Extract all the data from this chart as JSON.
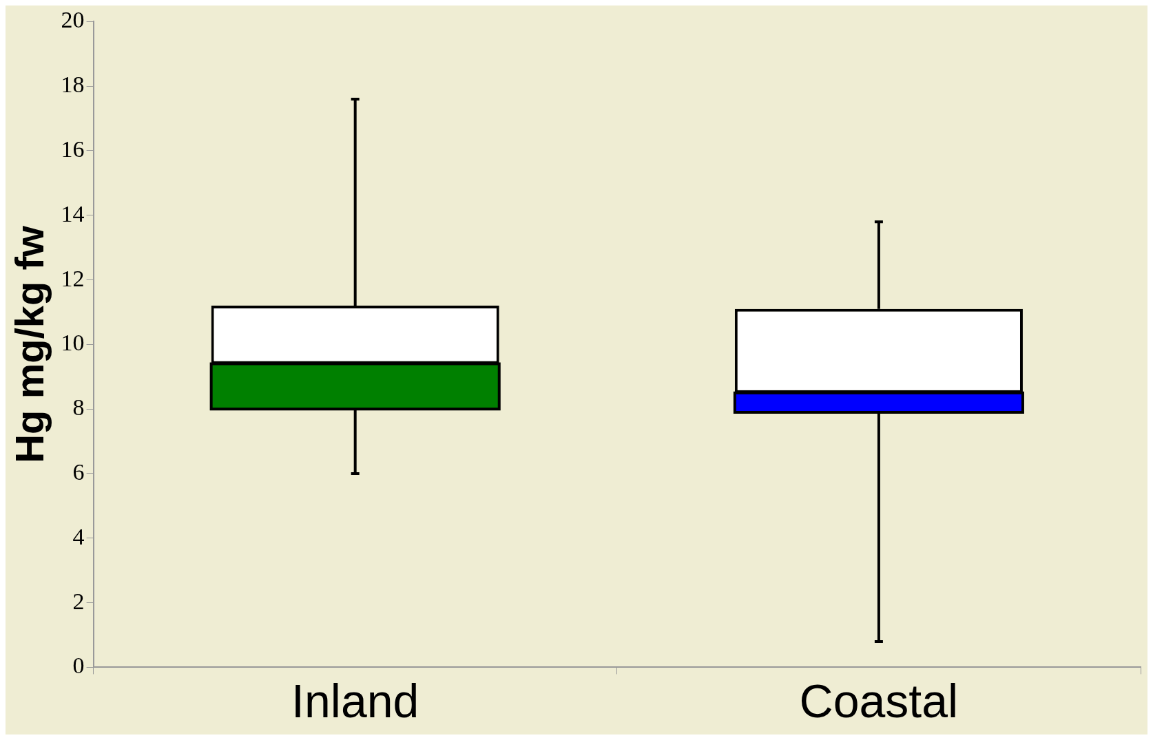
{
  "chart_data": {
    "type": "box",
    "ylabel": "Hg mg/kg fw",
    "categories": [
      "Inland",
      "Coastal"
    ],
    "colors": [
      "#008000",
      "#0000ff"
    ],
    "boxes": [
      {
        "low": 6.0,
        "q1": 8.0,
        "median": 9.4,
        "q3": 11.2,
        "high": 17.6
      },
      {
        "low": 0.8,
        "q1": 7.9,
        "median": 8.5,
        "q3": 11.1,
        "high": 13.8
      }
    ],
    "ylim": [
      0,
      20
    ],
    "yticks": [
      0,
      2,
      4,
      6,
      8,
      10,
      12,
      14,
      16,
      18,
      20
    ],
    "grid": false
  }
}
